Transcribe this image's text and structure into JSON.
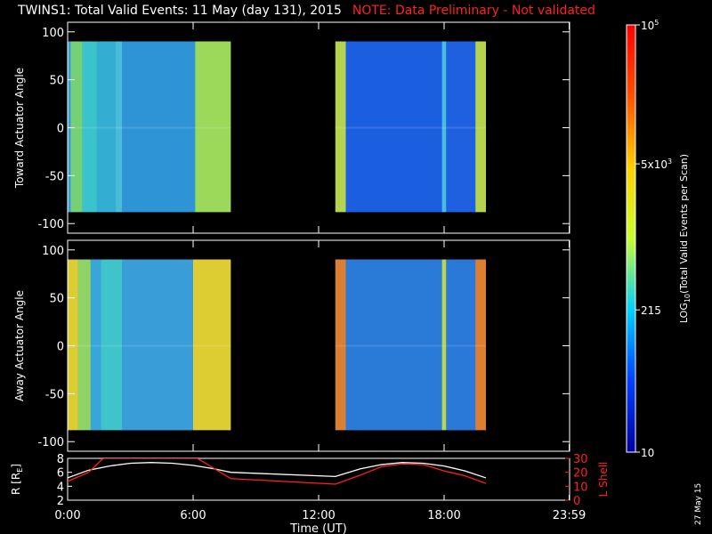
{
  "header": {
    "title": "TWINS1: Total Valid Events: 11 May (day 131), 2015",
    "note": "NOTE: Data Preliminary - Not validated"
  },
  "stamp": "27 May 15",
  "colors": {
    "background": "#000000",
    "axis": "#ffffff",
    "note": "#ff2020",
    "lshell": "#ff2020",
    "radius": "#ffffff"
  },
  "chart_data": [
    {
      "type": "heatmap",
      "ylabel": "Toward Actuator Angle",
      "ylim": [
        -110,
        110
      ],
      "yticks": [
        100,
        50,
        0,
        -50,
        -100
      ],
      "xlim_hours": [
        0,
        24
      ],
      "blocks": [
        {
          "x_start_h": 0.0,
          "x_end_h": 7.8,
          "y_range": [
            -88,
            90
          ],
          "base_color": "#2f9ad8",
          "stripes": [
            {
              "x_start_h": 0.0,
              "x_end_h": 0.15,
              "color": "#3aa0dc"
            },
            {
              "x_start_h": 0.15,
              "x_end_h": 0.7,
              "color": "#7ed66a"
            },
            {
              "x_start_h": 0.7,
              "x_end_h": 1.4,
              "color": "#3cc8c8"
            },
            {
              "x_start_h": 1.4,
              "x_end_h": 2.3,
              "color": "#34b0d2"
            },
            {
              "x_start_h": 2.3,
              "x_end_h": 2.6,
              "color": "#4ec0d8"
            },
            {
              "x_start_h": 2.6,
              "x_end_h": 6.1,
              "color": "#2f94d6"
            },
            {
              "x_start_h": 6.1,
              "x_end_h": 7.8,
              "color": "#a8e04c"
            }
          ]
        },
        {
          "x_start_h": 12.8,
          "x_end_h": 20.0,
          "y_range": [
            -88,
            90
          ],
          "base_color": "#1d5ee0",
          "stripes": [
            {
              "x_start_h": 12.8,
              "x_end_h": 13.3,
              "color": "#c8e040"
            },
            {
              "x_start_h": 13.3,
              "x_end_h": 17.9,
              "color": "#1d5ee0"
            },
            {
              "x_start_h": 17.9,
              "x_end_h": 18.1,
              "color": "#4ec8e0"
            },
            {
              "x_start_h": 18.1,
              "x_end_h": 19.5,
              "color": "#2060e0"
            },
            {
              "x_start_h": 19.5,
              "x_end_h": 20.0,
              "color": "#c8e040"
            }
          ]
        }
      ]
    },
    {
      "type": "heatmap",
      "ylabel": "Away Actuator Angle",
      "ylim": [
        -110,
        110
      ],
      "yticks": [
        100,
        50,
        0,
        -50,
        -100
      ],
      "xlim_hours": [
        0,
        24
      ],
      "blocks": [
        {
          "x_start_h": 0.0,
          "x_end_h": 7.8,
          "y_range": [
            -88,
            90
          ],
          "base_color": "#3aa6d8",
          "stripes": [
            {
              "x_start_h": 0.0,
              "x_end_h": 0.5,
              "color": "#f0d020"
            },
            {
              "x_start_h": 0.5,
              "x_end_h": 1.1,
              "color": "#9ad85a"
            },
            {
              "x_start_h": 1.1,
              "x_end_h": 1.6,
              "color": "#3aa6d8"
            },
            {
              "x_start_h": 1.6,
              "x_end_h": 2.6,
              "color": "#40c8c8"
            },
            {
              "x_start_h": 2.6,
              "x_end_h": 6.0,
              "color": "#3a9cd8"
            },
            {
              "x_start_h": 6.0,
              "x_end_h": 7.8,
              "color": "#f0d020"
            }
          ]
        },
        {
          "x_start_h": 12.8,
          "x_end_h": 20.0,
          "y_range": [
            -88,
            90
          ],
          "base_color": "#2a7ad8",
          "stripes": [
            {
              "x_start_h": 12.8,
              "x_end_h": 13.3,
              "color": "#f08020"
            },
            {
              "x_start_h": 13.3,
              "x_end_h": 17.9,
              "color": "#2a7ad8"
            },
            {
              "x_start_h": 17.9,
              "x_end_h": 18.1,
              "color": "#c8e040"
            },
            {
              "x_start_h": 18.1,
              "x_end_h": 19.5,
              "color": "#2a78d8"
            },
            {
              "x_start_h": 19.5,
              "x_end_h": 20.0,
              "color": "#f08020"
            }
          ]
        }
      ]
    },
    {
      "type": "line",
      "xlabel": "Time (UT)",
      "xtick_labels": [
        "0:00",
        "6:00",
        "12:00",
        "18:00",
        "23:59"
      ],
      "xtick_hours": [
        0,
        6,
        12,
        18,
        23.98
      ],
      "left_axis": {
        "label": "R [R_E]",
        "label_main": "R [R",
        "label_sub": "E",
        "label_end": "]",
        "ylim": [
          2,
          8
        ],
        "ticks": [
          2,
          4,
          6,
          8
        ]
      },
      "right_axis": {
        "label": "L Shell",
        "ylim": [
          0,
          30
        ],
        "ticks": [
          0,
          10,
          20,
          30
        ]
      },
      "series": [
        {
          "axis": "left",
          "x": [
            0,
            1,
            2,
            3,
            4,
            5,
            6,
            7,
            7.8,
            12.8,
            14,
            15,
            16,
            17,
            18,
            19,
            20
          ],
          "y": [
            5.2,
            6.3,
            6.9,
            7.3,
            7.4,
            7.3,
            7.0,
            6.5,
            6.0,
            5.4,
            6.5,
            7.1,
            7.4,
            7.3,
            6.9,
            6.2,
            5.2
          ]
        },
        {
          "axis": "right",
          "x": [
            0,
            1,
            1.7,
            6.2,
            7.8,
            12.8,
            14,
            15,
            16,
            17,
            18,
            19,
            20
          ],
          "y": [
            13.5,
            20,
            30,
            30,
            15.5,
            11.5,
            18,
            24,
            26,
            25.5,
            21,
            17.5,
            12
          ]
        }
      ],
      "colors": [
        "#ffffff",
        "#ff2020"
      ]
    }
  ],
  "colorbar": {
    "label_log": "LOG",
    "label_sub": "10",
    "label_rest": "(Total Valid Events per Scan)",
    "tick_labels": [
      {
        "text": "10",
        "value_log": 1.0
      },
      {
        "text": "215",
        "value_log": 2.332
      },
      {
        "text": "5x10",
        "sup": "3",
        "value_log": 3.699
      },
      {
        "text": "10",
        "sup": "5",
        "value_log": 5.0
      }
    ],
    "range_log": [
      1,
      5
    ],
    "stops": [
      "#0000a0",
      "#0040ff",
      "#00d0ff",
      "#c8ff30",
      "#ffd000",
      "#ff5000",
      "#ff0000"
    ]
  }
}
